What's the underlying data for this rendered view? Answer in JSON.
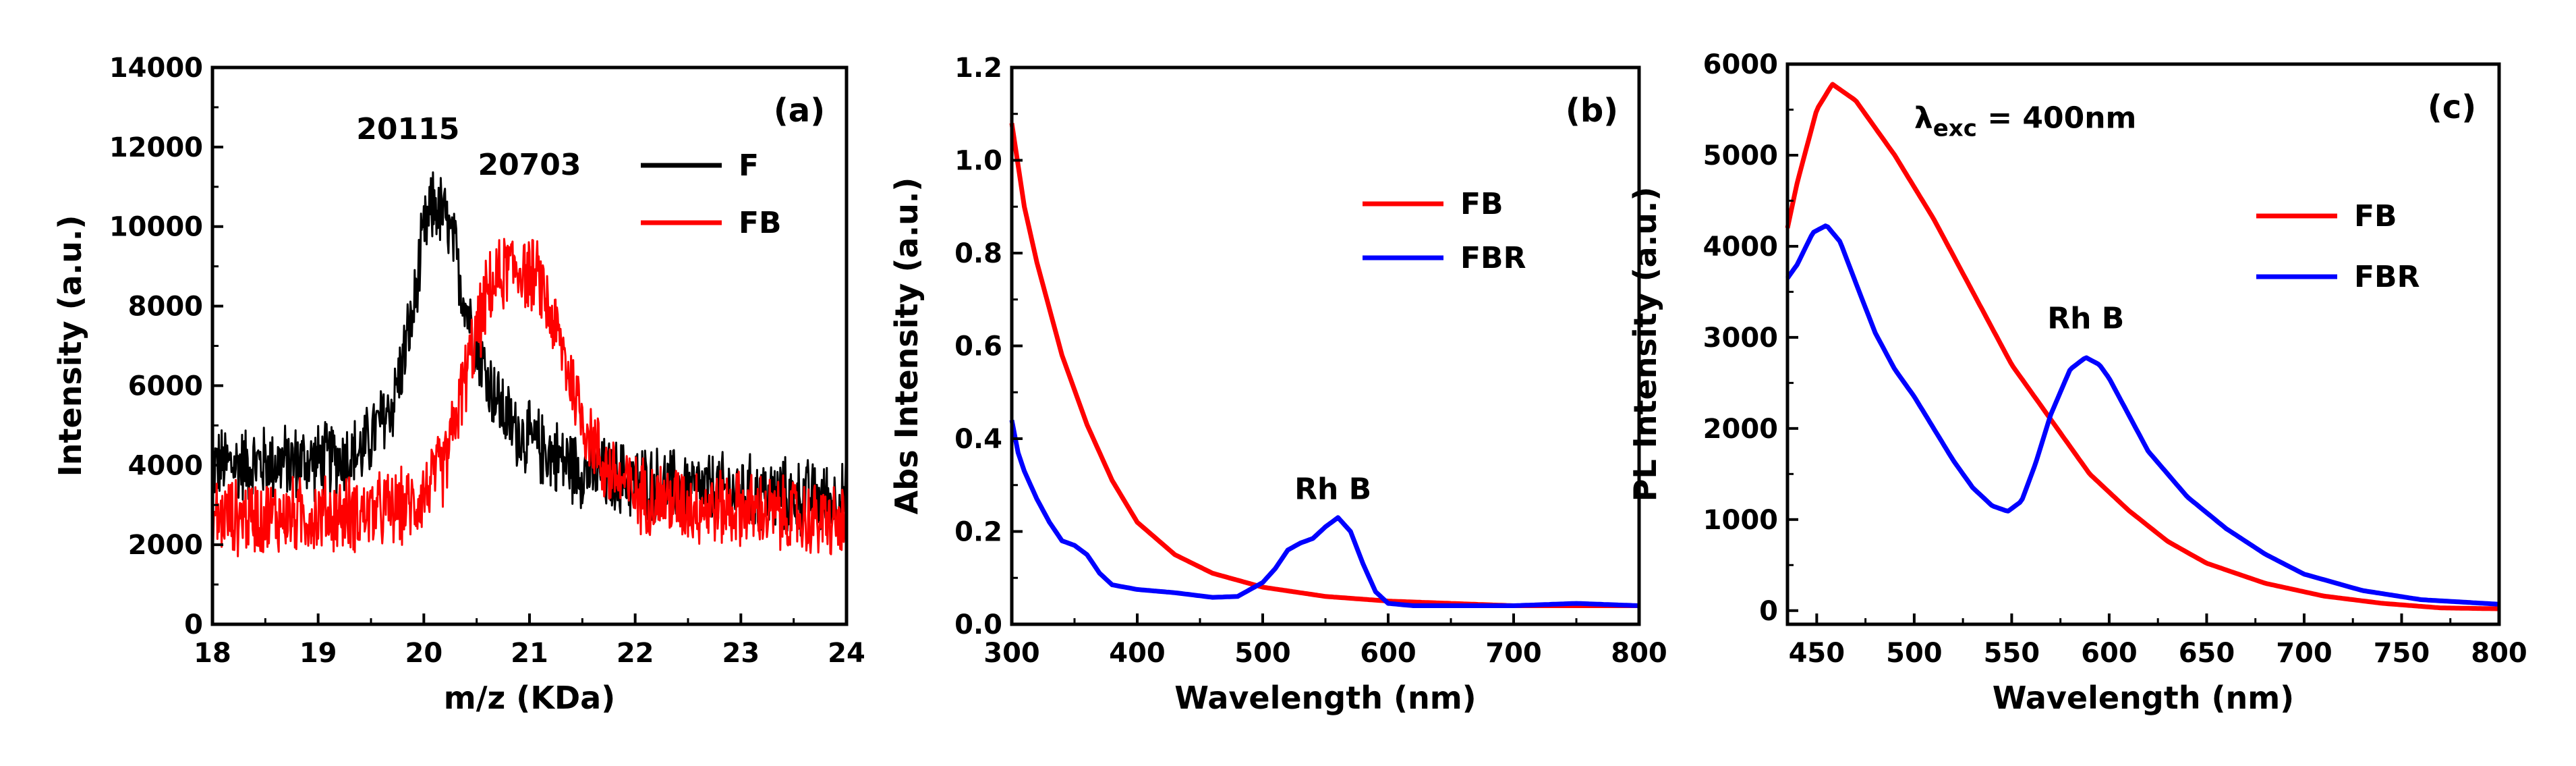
{
  "chart_data": [
    {
      "type": "line",
      "panel_label": "(a)",
      "xlabel": "m/z (KDa)",
      "ylabel": "Intensity (a.u.)",
      "xlim": [
        18,
        24
      ],
      "ylim": [
        0,
        14000
      ],
      "xticks": [
        18,
        19,
        20,
        21,
        22,
        23,
        24
      ],
      "yticks": [
        0,
        2000,
        4000,
        6000,
        8000,
        10000,
        12000,
        14000
      ],
      "legend_position": "top-right",
      "noisy": true,
      "series": [
        {
          "name": "F",
          "color": "#000000",
          "x": [
            18.0,
            18.5,
            19.0,
            19.4,
            19.7,
            19.9,
            20.0,
            20.1,
            20.2,
            20.3,
            20.4,
            20.6,
            20.8,
            21.0,
            21.2,
            21.4,
            21.6,
            22.0,
            22.5,
            23.0,
            23.5,
            24.0
          ],
          "y": [
            4000,
            4050,
            4100,
            4300,
            5500,
            7800,
            9800,
            10600,
            10200,
            9300,
            8000,
            6200,
            5100,
            4600,
            4300,
            4000,
            3800,
            3600,
            3400,
            3300,
            3200,
            3100
          ]
        },
        {
          "name": "FB",
          "color": "#ff0000",
          "x": [
            18.0,
            18.5,
            19.0,
            19.5,
            19.9,
            20.2,
            20.4,
            20.6,
            20.8,
            20.9,
            21.1,
            21.3,
            21.5,
            21.7,
            22.0,
            22.5,
            23.0,
            23.5,
            24.0
          ],
          "y": [
            2700,
            2700,
            2750,
            2800,
            3000,
            4000,
            6300,
            8300,
            9000,
            9000,
            8600,
            7000,
            5200,
            4000,
            3300,
            3000,
            2900,
            2700,
            2500
          ]
        }
      ],
      "annotations": [
        {
          "text": "20115",
          "x": 19.85,
          "y": 12200
        },
        {
          "text": "20703",
          "x": 21.0,
          "y": 11300
        }
      ]
    },
    {
      "type": "line",
      "panel_label": "(b)",
      "xlabel": "Wavelength (nm)",
      "ylabel": "Abs Intensity (a.u.)",
      "xlim": [
        300,
        800
      ],
      "ylim": [
        0,
        1.2
      ],
      "xticks": [
        300,
        400,
        500,
        600,
        700,
        800
      ],
      "yticks": [
        0.0,
        0.2,
        0.4,
        0.6,
        0.8,
        1.0,
        1.2
      ],
      "ytick_labels": [
        "0.0",
        "0.2",
        "0.4",
        "0.6",
        "0.8",
        "1.0",
        "1.2"
      ],
      "legend_position": "top-right",
      "series": [
        {
          "name": "FB",
          "color": "#ff0000",
          "x": [
            300,
            310,
            320,
            340,
            360,
            380,
            400,
            430,
            460,
            500,
            550,
            600,
            650,
            700,
            750,
            800
          ],
          "y": [
            1.08,
            0.9,
            0.78,
            0.58,
            0.43,
            0.31,
            0.22,
            0.15,
            0.11,
            0.08,
            0.06,
            0.05,
            0.045,
            0.04,
            0.04,
            0.04
          ]
        },
        {
          "name": "FBR",
          "color": "#0000ff",
          "x": [
            300,
            305,
            310,
            320,
            330,
            340,
            350,
            360,
            370,
            380,
            400,
            430,
            460,
            480,
            500,
            510,
            520,
            530,
            540,
            550,
            560,
            570,
            580,
            590,
            600,
            620,
            650,
            700,
            750,
            800
          ],
          "y": [
            0.44,
            0.37,
            0.33,
            0.27,
            0.22,
            0.18,
            0.17,
            0.15,
            0.11,
            0.085,
            0.075,
            0.068,
            0.058,
            0.06,
            0.09,
            0.12,
            0.16,
            0.175,
            0.185,
            0.21,
            0.23,
            0.2,
            0.13,
            0.07,
            0.045,
            0.04,
            0.04,
            0.04,
            0.045,
            0.04
          ]
        }
      ],
      "annotations": [
        {
          "text": "Rh B",
          "x": 556,
          "y": 0.27
        }
      ]
    },
    {
      "type": "line",
      "panel_label": "(c)",
      "xlabel": "Wavelength (nm)",
      "ylabel": "PL Intensity (a.u.)",
      "xlim": [
        435,
        800
      ],
      "ylim": [
        -150,
        6000
      ],
      "xticks": [
        450,
        500,
        550,
        600,
        650,
        700,
        750,
        800
      ],
      "yticks": [
        0,
        1000,
        2000,
        3000,
        4000,
        5000,
        6000
      ],
      "legend_position": "right",
      "series": [
        {
          "name": "FB",
          "color": "#ff0000",
          "x": [
            435,
            440,
            450,
            458,
            470,
            490,
            510,
            530,
            550,
            570,
            590,
            610,
            630,
            650,
            680,
            710,
            740,
            770,
            800
          ],
          "y": [
            4200,
            4700,
            5500,
            5780,
            5600,
            5000,
            4300,
            3500,
            2700,
            2100,
            1500,
            1100,
            760,
            520,
            300,
            160,
            80,
            30,
            20
          ]
        },
        {
          "name": "FBR",
          "color": "#0000ff",
          "x": [
            435,
            440,
            448,
            455,
            462,
            470,
            480,
            490,
            500,
            510,
            520,
            530,
            540,
            548,
            555,
            562,
            570,
            580,
            588,
            595,
            600,
            610,
            620,
            640,
            660,
            680,
            700,
            730,
            760,
            800
          ],
          "y": [
            3650,
            3800,
            4150,
            4230,
            4050,
            3600,
            3050,
            2650,
            2350,
            2000,
            1650,
            1350,
            1150,
            1090,
            1200,
            1600,
            2150,
            2650,
            2780,
            2700,
            2550,
            2150,
            1750,
            1250,
            900,
            620,
            400,
            220,
            120,
            70
          ]
        }
      ],
      "annotations": [
        {
          "text": "Rh B",
          "x": 588,
          "y": 3100
        },
        {
          "text": "λ",
          "sub": "exc",
          "rest": " = 400nm",
          "x": 500,
          "y": 5300
        }
      ]
    }
  ]
}
